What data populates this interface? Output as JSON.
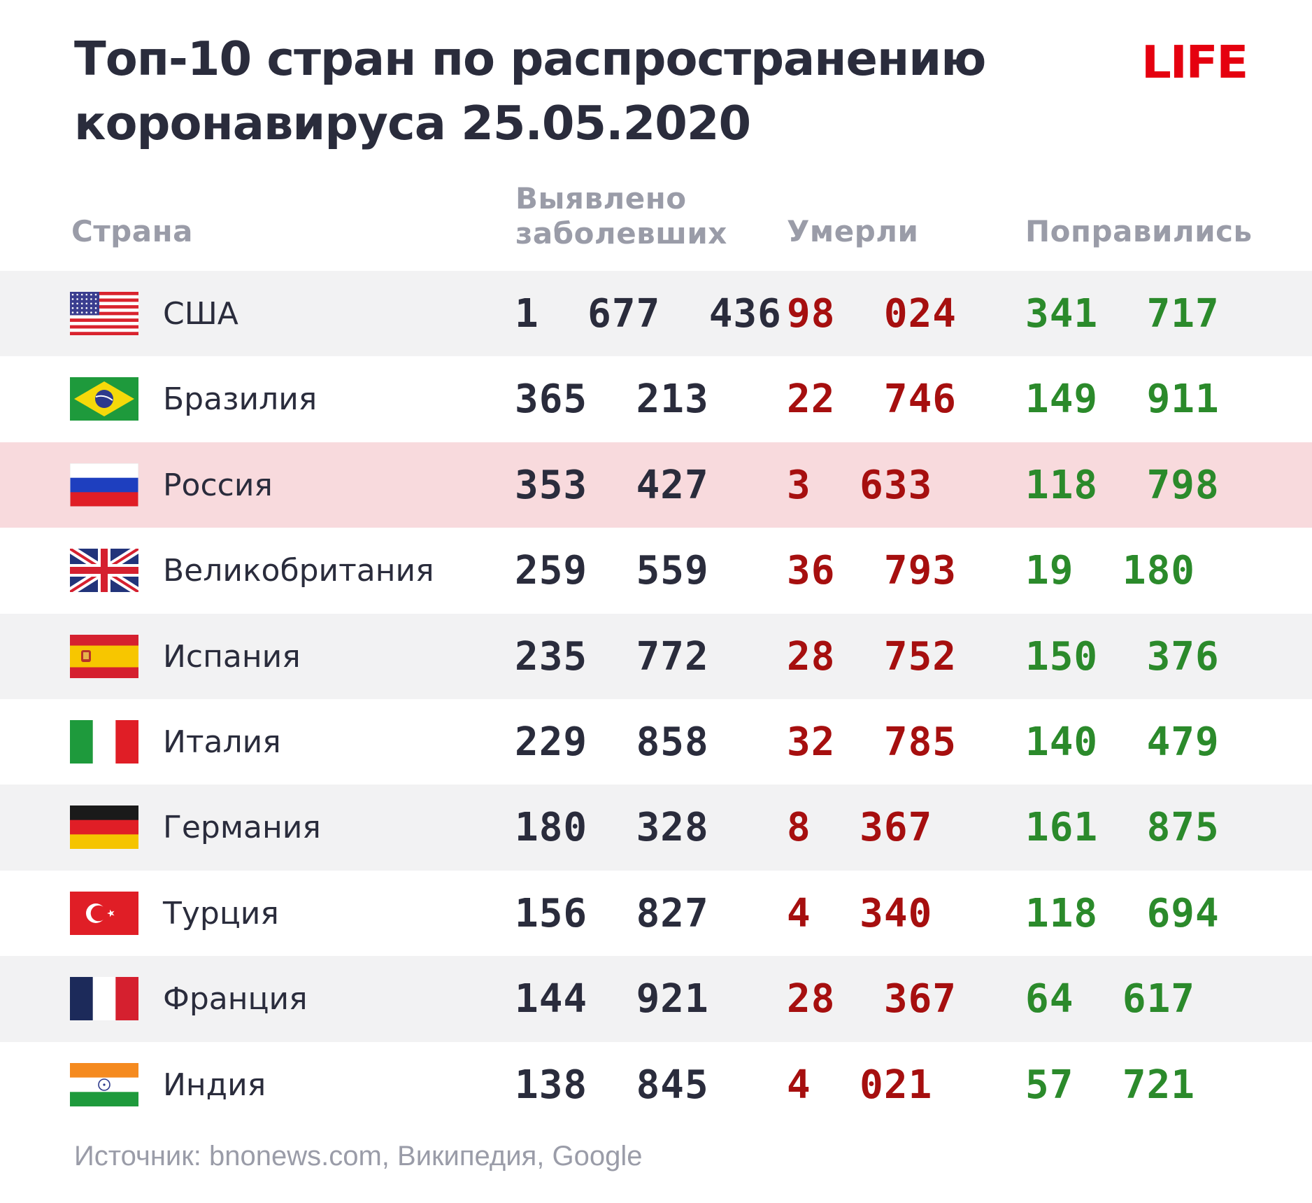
{
  "title_line1": "Топ-10 стран по распространению",
  "title_line2": "коронавируса 25.05.2020",
  "logo": "LIFE",
  "headers": {
    "country": "Страна",
    "cases_line1": "Выявлено",
    "cases_line2": "заболевших",
    "deaths": "Умерли",
    "recovered": "Поправились"
  },
  "source": "Источник: bnonews.com, Википедия, Google",
  "colors": {
    "cases": "#2a2c3c",
    "deaths": "#a60f0f",
    "recovered": "#2b8a2b",
    "highlight_row": "#f8dadd",
    "logo": "#e5000f"
  },
  "chart_data": {
    "type": "table",
    "columns": [
      "Страна",
      "Выявлено заболевших",
      "Умерли",
      "Поправились"
    ],
    "highlighted_row": "Россия",
    "rows": [
      {
        "flag": "usa-flag-icon",
        "country": "США",
        "cases": 1677436,
        "cases_text": "1 677 436",
        "deaths": 98024,
        "deaths_text": "98 024",
        "recovered": 341717,
        "recovered_text": "341 717"
      },
      {
        "flag": "brazil-flag-icon",
        "country": "Бразилия",
        "cases": 365213,
        "cases_text": "365 213",
        "deaths": 22746,
        "deaths_text": "22 746",
        "recovered": 149911,
        "recovered_text": "149 911"
      },
      {
        "flag": "russia-flag-icon",
        "country": "Россия",
        "cases": 353427,
        "cases_text": "353 427",
        "deaths": 3633,
        "deaths_text": "3 633",
        "recovered": 118798,
        "recovered_text": "118 798"
      },
      {
        "flag": "uk-flag-icon",
        "country": "Великобритания",
        "cases": 259559,
        "cases_text": "259 559",
        "deaths": 36793,
        "deaths_text": "36 793",
        "recovered": 19180,
        "recovered_text": "19 180"
      },
      {
        "flag": "spain-flag-icon",
        "country": "Испания",
        "cases": 235772,
        "cases_text": "235 772",
        "deaths": 28752,
        "deaths_text": "28 752",
        "recovered": 150376,
        "recovered_text": "150 376"
      },
      {
        "flag": "italy-flag-icon",
        "country": "Италия",
        "cases": 229858,
        "cases_text": "229 858",
        "deaths": 32785,
        "deaths_text": "32 785",
        "recovered": 140479,
        "recovered_text": "140 479"
      },
      {
        "flag": "germany-flag-icon",
        "country": "Германия",
        "cases": 180328,
        "cases_text": "180 328",
        "deaths": 8367,
        "deaths_text": "8 367",
        "recovered": 161875,
        "recovered_text": "161 875"
      },
      {
        "flag": "turkey-flag-icon",
        "country": "Турция",
        "cases": 156827,
        "cases_text": "156 827",
        "deaths": 4340,
        "deaths_text": "4 340",
        "recovered": 118694,
        "recovered_text": "118 694"
      },
      {
        "flag": "france-flag-icon",
        "country": "Франция",
        "cases": 144921,
        "cases_text": "144 921",
        "deaths": 28367,
        "deaths_text": "28 367",
        "recovered": 64617,
        "recovered_text": "64 617"
      },
      {
        "flag": "india-flag-icon",
        "country": "Индия",
        "cases": 138845,
        "cases_text": "138 845",
        "deaths": 4021,
        "deaths_text": "4 021",
        "recovered": 57721,
        "recovered_text": "57 721"
      }
    ]
  }
}
